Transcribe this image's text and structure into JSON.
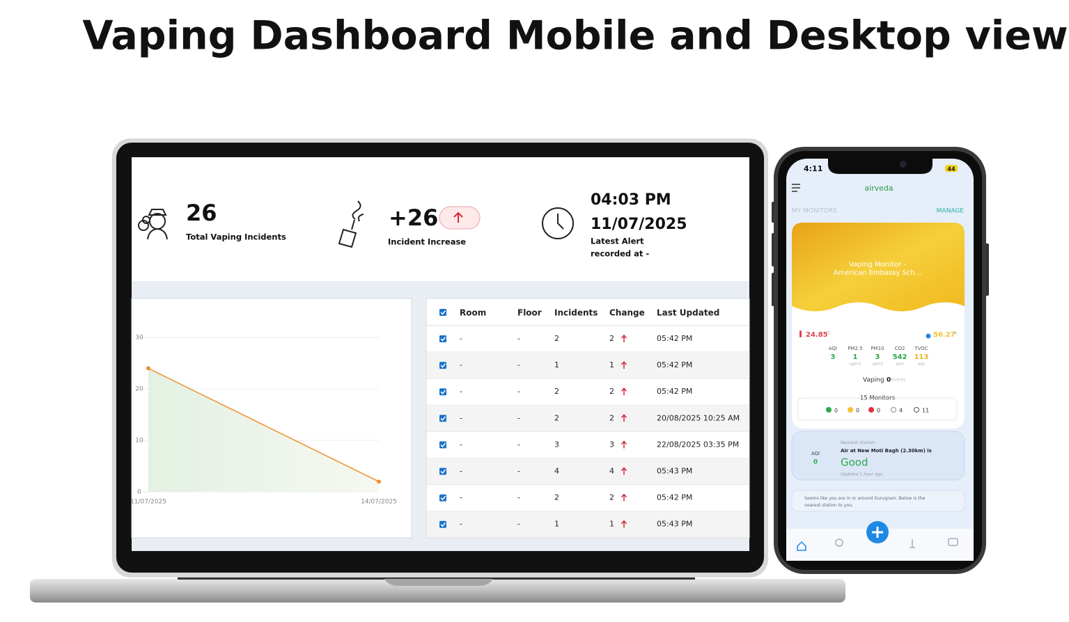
{
  "title": "Vaping Dashboard Mobile and Desktop view",
  "desktop": {
    "stats": [
      {
        "value": "26",
        "label": "Total Vaping Incidents"
      },
      {
        "value": "+26",
        "label": "Incident Increase"
      }
    ],
    "alert": {
      "time": "04:03 PM",
      "date": "11/07/2025",
      "label": [
        "Latest Alert",
        "recorded at -"
      ]
    },
    "chart": {
      "type": "line",
      "x": [
        "11/07/2025",
        "14/07/2025"
      ],
      "values": [
        24,
        2
      ],
      "ylim": [
        0,
        30
      ],
      "yticks": [
        0,
        10,
        20,
        30
      ],
      "color": "#f0902f",
      "grid": true
    },
    "table": {
      "columns": [
        "Room",
        "Floor",
        "Incidents",
        "Change",
        "Last Updated"
      ],
      "rows": [
        [
          "-",
          "-",
          "2",
          "2",
          "05:42 PM"
        ],
        [
          "-",
          "-",
          "1",
          "1",
          "05:42 PM"
        ],
        [
          "-",
          "-",
          "2",
          "2",
          "05:42 PM"
        ],
        [
          "-",
          "-",
          "2",
          "2",
          "20/08/2025 10:25 AM"
        ],
        [
          "-",
          "-",
          "3",
          "3",
          "22/08/2025 03:35 PM"
        ],
        [
          "-",
          "-",
          "4",
          "4",
          "05:43 PM"
        ],
        [
          "-",
          "-",
          "2",
          "2",
          "05:42 PM"
        ],
        [
          "-",
          "-",
          "1",
          "1",
          "05:43 PM"
        ]
      ]
    }
  },
  "mobile": {
    "status_time": "4:11",
    "battery": "44",
    "brand": "airveda",
    "section": "MY MONITORS",
    "action": "MANAGE",
    "monitor_name": [
      "Vaping Monitor -",
      "American Embassy Sch..."
    ],
    "temperature": "24.85",
    "temperature_unit": "°C",
    "humidity": "56.27",
    "humidity_unit": "%",
    "metrics": [
      {
        "label": "AQI",
        "value": "3"
      },
      {
        "label": "PM2.5",
        "value": "1",
        "unit": "ug/m3"
      },
      {
        "label": "PM10",
        "value": "3",
        "unit": "ug/m3"
      },
      {
        "label": "CO2",
        "value": "542",
        "unit": "ppm"
      },
      {
        "label": "TVOC",
        "value": "113",
        "unit": "ppb"
      }
    ],
    "vaping_label": "Vaping",
    "vaping_value": "0",
    "vaping_unit": "Events",
    "monitors_label": "15 Monitors",
    "status_counts": [
      "0",
      "0",
      "0",
      "4",
      "11"
    ],
    "station": {
      "caption": "Nearest station",
      "title": "Air at New Moti Bagh (2.30km) is",
      "status": "Good",
      "updated": "Updated 1 hour ago",
      "aqi_label": "AQI",
      "aqi_value": "0"
    },
    "location_note": [
      "Seems like you are in or around Gurugram. Below is the",
      "nearest station to you."
    ]
  }
}
